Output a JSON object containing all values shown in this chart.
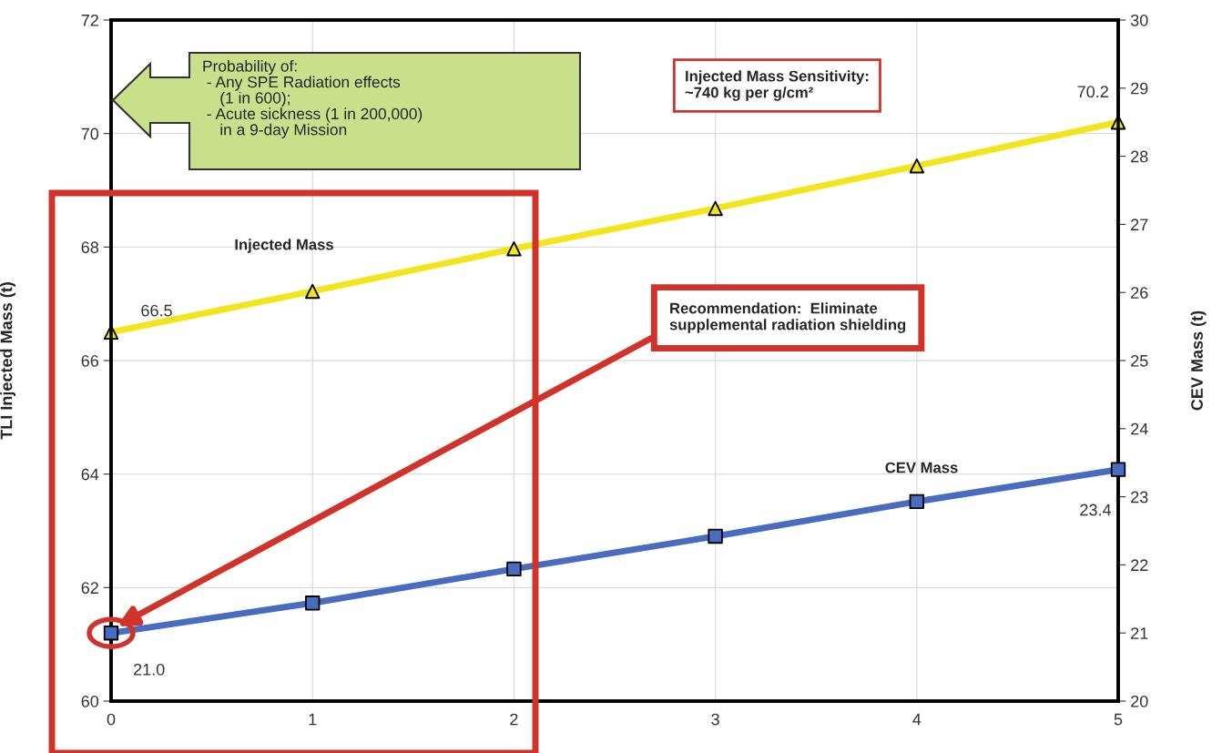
{
  "chart_data": {
    "type": "line",
    "x": [
      0,
      1,
      2,
      3,
      4,
      5
    ],
    "xlim": [
      0,
      5
    ],
    "xticks": [
      0,
      1,
      2,
      3,
      4,
      5
    ],
    "ylim": [
      60,
      72
    ],
    "yticks": [
      60,
      62,
      64,
      66,
      68,
      70,
      72
    ],
    "y2lim": [
      20,
      30
    ],
    "y2ticks": [
      20,
      21,
      22,
      23,
      24,
      25,
      26,
      27,
      28,
      29,
      30
    ],
    "ylabel": "TLI Injected Mass (t)",
    "y2label": "CEV Mass (t)",
    "grid": true,
    "series": [
      {
        "name": "Injected Mass",
        "color": "#f2e51c",
        "marker": "triangle",
        "values": [
          66.5,
          67.22,
          67.97,
          68.68,
          69.43,
          70.2
        ],
        "value_labels": [
          "66.5",
          null,
          null,
          null,
          null,
          "70.2"
        ]
      },
      {
        "name": "CEV Mass",
        "color": "#4a6cc0",
        "marker": "square",
        "axis": "y2",
        "values": [
          21.0,
          21.44,
          21.94,
          22.42,
          22.93,
          23.4
        ],
        "value_labels": [
          "21.0",
          null,
          null,
          null,
          null,
          "23.4"
        ]
      }
    ],
    "annotations": [
      "Probability of:\n - Any SPE Radiation effects\n    (1 in 600);\n - Acute sickness (1 in 200,000)\n    in a 9-day Mission",
      "Injected Mass Sensitivity:\n~740 kg per g/cm²",
      "Recommendation:  Eliminate\nsupplemental radiation shielding"
    ]
  }
}
